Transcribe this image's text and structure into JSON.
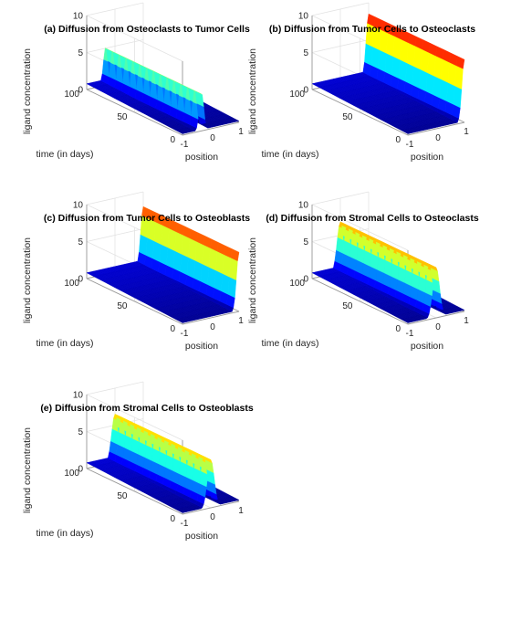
{
  "chart_data": [
    {
      "type": "surface",
      "title": "(a) Diffusion from Osteoclasts to Tumor Cells",
      "xlabel": "position",
      "ylabel": "time (in days)",
      "zlabel": "ligand concentration",
      "xlim": [
        -1,
        1
      ],
      "ylim": [
        0,
        100
      ],
      "zlim": [
        0,
        10
      ],
      "xticks": [
        "-1",
        "0",
        "1"
      ],
      "yticks": [
        "0",
        "50",
        "100"
      ],
      "zticks": [
        "0",
        "5",
        "10"
      ],
      "source_position": -0.33,
      "peak_concentration": 5.2,
      "spread_width": 0.08,
      "grid": true,
      "colormap": "jet"
    },
    {
      "type": "surface",
      "title": "(b) Diffusion from Tumor Cells to Osteoclasts",
      "xlabel": "position",
      "ylabel": "time (in days)",
      "zlabel": "ligand concentration",
      "xlim": [
        -1,
        1
      ],
      "ylim": [
        0,
        100
      ],
      "zlim": [
        0,
        10
      ],
      "xticks": [
        "-1",
        "0",
        "1"
      ],
      "yticks": [
        "0",
        "50",
        "100"
      ],
      "zticks": [
        "0",
        "5",
        "10"
      ],
      "source_position": 1.0,
      "peak_concentration": 8.5,
      "spread_width": 0.09,
      "grid": true,
      "colormap": "jet"
    },
    {
      "type": "surface",
      "title": "(c) Diffusion from Tumor Cells to Osteoblasts",
      "xlabel": "position",
      "ylabel": "time (in days)",
      "zlabel": "ligand concentration",
      "xlim": [
        -1,
        1
      ],
      "ylim": [
        0,
        100
      ],
      "zlim": [
        0,
        10
      ],
      "xticks": [
        "-1",
        "0",
        "1"
      ],
      "yticks": [
        "0",
        "50",
        "100"
      ],
      "zticks": [
        "0",
        "5",
        "10"
      ],
      "source_position": 1.0,
      "peak_concentration": 8.0,
      "spread_width": 0.09,
      "grid": true,
      "colormap": "jet"
    },
    {
      "type": "surface",
      "title": "(d) Diffusion from Stromal Cells to Osteoclasts",
      "xlabel": "position",
      "ylabel": "time (in days)",
      "zlabel": "ligand concentration",
      "xlim": [
        -1,
        1
      ],
      "ylim": [
        0,
        100
      ],
      "zlim": [
        0,
        10
      ],
      "xticks": [
        "-1",
        "0",
        "1"
      ],
      "yticks": [
        "0",
        "50",
        "100"
      ],
      "zticks": [
        "0",
        "5",
        "10"
      ],
      "source_position": 0.0,
      "peak_concentration": 6.8,
      "spread_width": 0.12,
      "grid": true,
      "colormap": "jet"
    },
    {
      "type": "surface",
      "title": "(e) Diffusion from Stromal Cells to Osteoblasts",
      "xlabel": "position",
      "ylabel": "time (in days)",
      "zlabel": "ligand concentration",
      "xlim": [
        -1,
        1
      ],
      "ylim": [
        0,
        100
      ],
      "zlim": [
        0,
        10
      ],
      "xticks": [
        "-1",
        "0",
        "1"
      ],
      "yticks": [
        "0",
        "50",
        "100"
      ],
      "zticks": [
        "0",
        "5",
        "10"
      ],
      "source_position": 0.0,
      "peak_concentration": 6.5,
      "spread_width": 0.12,
      "grid": true,
      "colormap": "jet"
    }
  ]
}
